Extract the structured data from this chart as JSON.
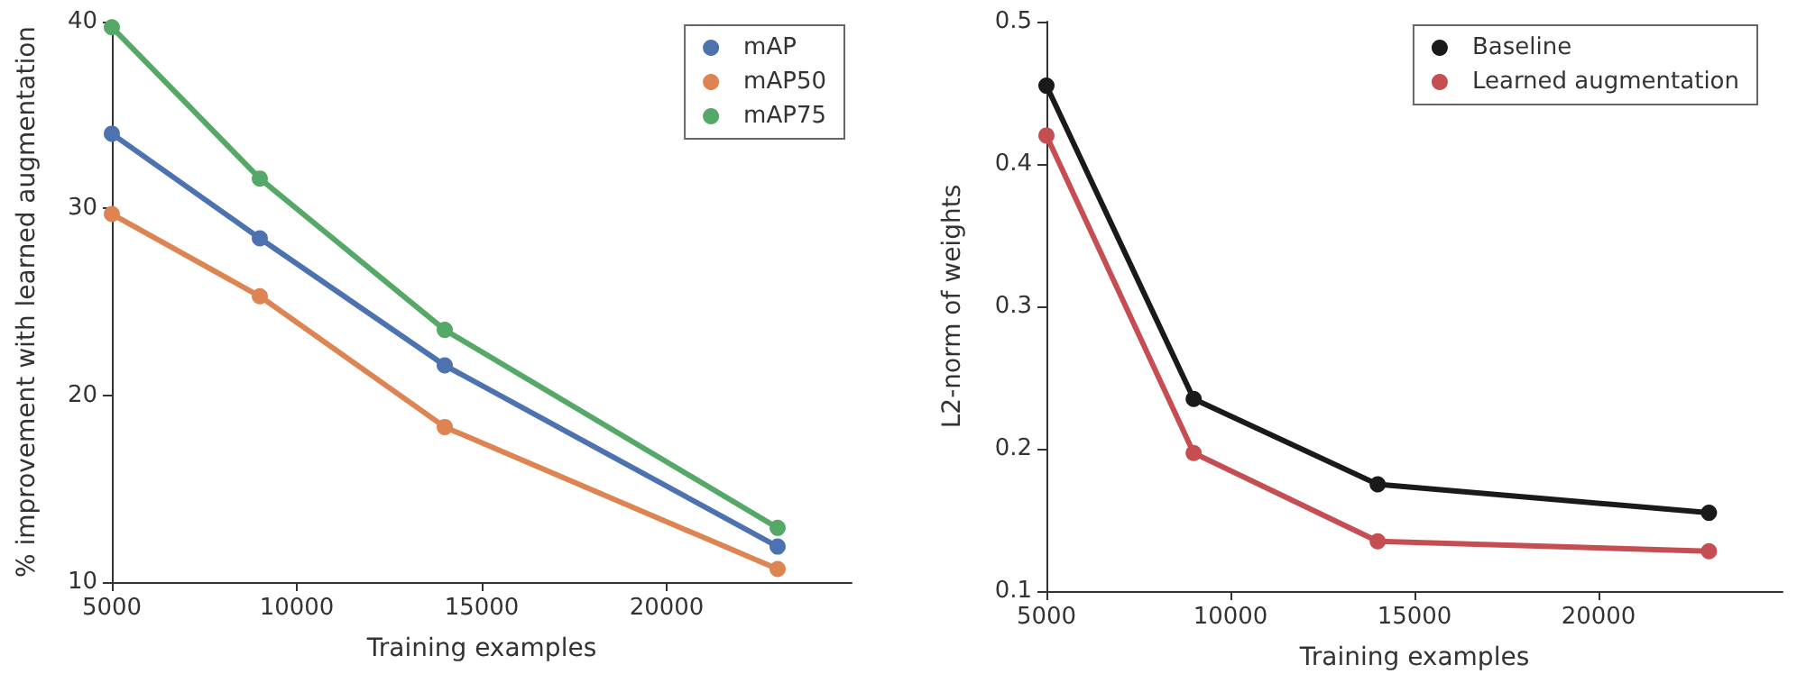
{
  "chart_data": [
    {
      "type": "line",
      "xlabel": "Training examples",
      "ylabel": "% improvement with learned augmentation",
      "x": [
        5000,
        9000,
        14000,
        23000
      ],
      "xlim": [
        5000,
        25000
      ],
      "xticks": [
        5000,
        10000,
        15000,
        20000
      ],
      "ylim": [
        10,
        40
      ],
      "yticks": [
        10,
        20,
        30,
        40
      ],
      "legend": "top right",
      "grid": false,
      "marker": "circle",
      "line_style": "solid",
      "series": [
        {
          "name": "mAP",
          "color": "#4c72b0",
          "values": [
            34,
            28.4,
            21.6,
            11.9
          ]
        },
        {
          "name": "mAP50",
          "color": "#dd8452",
          "values": [
            29.7,
            25.3,
            18.3,
            10.7
          ]
        },
        {
          "name": "mAP75",
          "color": "#55a868",
          "values": [
            39.7,
            31.6,
            23.5,
            12.9
          ]
        }
      ]
    },
    {
      "type": "line",
      "xlabel": "Training examples",
      "ylabel": "L2-norm of weights",
      "x": [
        5000,
        9000,
        14000,
        23000
      ],
      "xlim": [
        5000,
        25000
      ],
      "xticks": [
        5000,
        10000,
        15000,
        20000
      ],
      "ylim": [
        0.1,
        0.5
      ],
      "yticks": [
        0.1,
        0.2,
        0.3,
        0.4,
        0.5
      ],
      "legend": "top right",
      "grid": false,
      "marker": "circle",
      "line_style": "solid",
      "series": [
        {
          "name": "Baseline",
          "color": "#1a1a1a",
          "values": [
            0.455,
            0.235,
            0.175,
            0.155
          ]
        },
        {
          "name": "Learned augmentation",
          "color": "#c44e52",
          "values": [
            0.42,
            0.197,
            0.135,
            0.128
          ]
        }
      ]
    }
  ]
}
